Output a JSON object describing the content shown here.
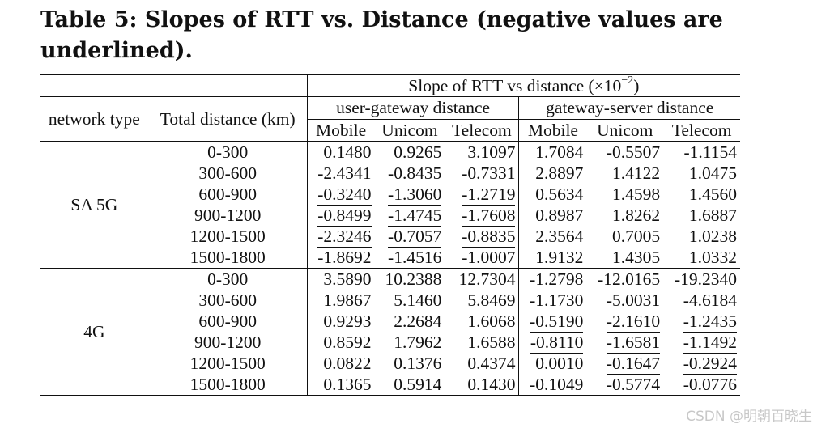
{
  "caption": "Table 5: Slopes of RTT vs. Distance (negative values are underlined).",
  "header": {
    "slope_label": "Slope of RTT vs distance (×10",
    "slope_exp": "−2",
    "slope_close": ")",
    "network_type": "network type",
    "total_distance": "Total distance (km)",
    "user_gateway": "user-gateway distance",
    "gateway_server": "gateway-server distance",
    "carriers": [
      "Mobile",
      "Unicom",
      "Telecom",
      "Mobile",
      "Unicom",
      "Telecom"
    ]
  },
  "groups": [
    {
      "name": "SA 5G",
      "rows": [
        {
          "range": "0-300",
          "values": [
            "0.1480",
            "0.9265",
            "3.1097",
            "1.7084",
            "-0.5507",
            "-1.1154"
          ]
        },
        {
          "range": "300-600",
          "values": [
            "-2.4341",
            "-0.8435",
            "-0.7331",
            "2.8897",
            "1.4122",
            "1.0475"
          ]
        },
        {
          "range": "600-900",
          "values": [
            "-0.3240",
            "-1.3060",
            "-1.2719",
            "0.5634",
            "1.4598",
            "1.4560"
          ]
        },
        {
          "range": "900-1200",
          "values": [
            "-0.8499",
            "-1.4745",
            "-1.7608",
            "0.8987",
            "1.8262",
            "1.6887"
          ]
        },
        {
          "range": "1200-1500",
          "values": [
            "-2.3246",
            "-0.7057",
            "-0.8835",
            "2.3564",
            "0.7005",
            "1.0238"
          ]
        },
        {
          "range": "1500-1800",
          "values": [
            "-1.8692",
            "-1.4516",
            "-1.0007",
            "1.9132",
            "1.4305",
            "1.0332"
          ]
        }
      ]
    },
    {
      "name": "4G",
      "rows": [
        {
          "range": "0-300",
          "values": [
            "3.5890",
            "10.2388",
            "12.7304",
            "-1.2798",
            "-12.0165",
            "-19.2340"
          ]
        },
        {
          "range": "300-600",
          "values": [
            "1.9867",
            "5.1460",
            "5.8469",
            "-1.1730",
            "-5.0031",
            "-4.6184"
          ]
        },
        {
          "range": "600-900",
          "values": [
            "0.9293",
            "2.2684",
            "1.6068",
            "-0.5190",
            "-2.1610",
            "-1.2435"
          ]
        },
        {
          "range": "900-1200",
          "values": [
            "0.8592",
            "1.7962",
            "1.6588",
            "-0.8110",
            "-1.6581",
            "-1.1492"
          ]
        },
        {
          "range": "1200-1500",
          "values": [
            "0.0822",
            "0.1376",
            "0.4374",
            "0.0010",
            "-0.1647",
            "-0.2924"
          ]
        },
        {
          "range": "1500-1800",
          "values": [
            "0.1365",
            "0.5914",
            "0.1430",
            "-0.1049",
            "-0.5774",
            "-0.0776"
          ]
        }
      ]
    }
  ],
  "watermark": "CSDN @明朝百晓生"
}
